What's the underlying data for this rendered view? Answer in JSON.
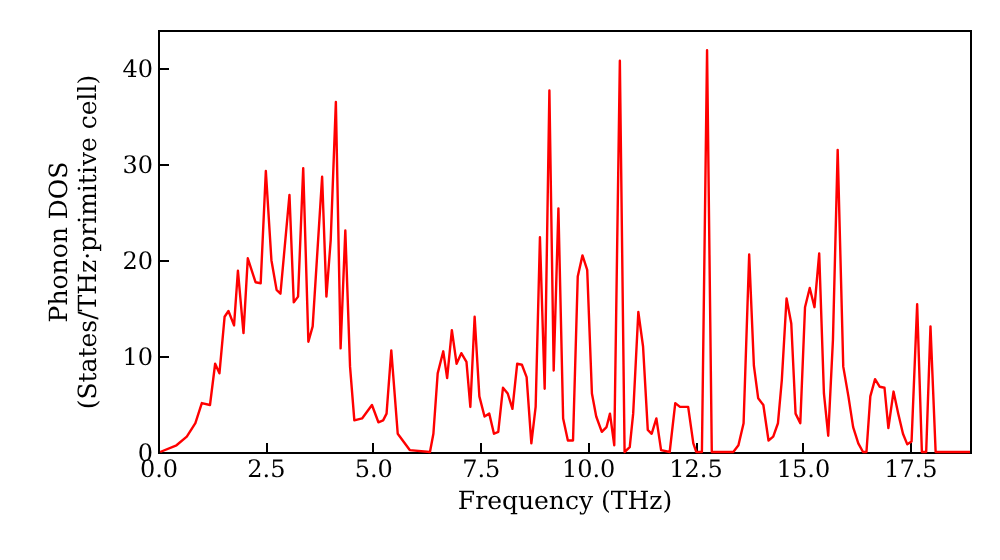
{
  "chart_data": {
    "type": "line",
    "xlabel": "Frequency (THz)",
    "ylabel": "Phonon DOS\n(States/THz·primitive cell)",
    "xlim": [
      0,
      18.9
    ],
    "ylim": [
      0,
      44
    ],
    "xticks": [
      {
        "value": 0,
        "label": "0.0"
      },
      {
        "value": 2.5,
        "label": "2.5"
      },
      {
        "value": 5,
        "label": "5.0"
      },
      {
        "value": 7.5,
        "label": "7.5"
      },
      {
        "value": 10,
        "label": "10.0"
      },
      {
        "value": 12.5,
        "label": "12.5"
      },
      {
        "value": 15,
        "label": "15.0"
      },
      {
        "value": 17.5,
        "label": "17.5"
      }
    ],
    "yticks": [
      0,
      10,
      20,
      30,
      40
    ],
    "grid": false,
    "marker": "none",
    "line_style": "solid",
    "series": [
      {
        "color": "#ff0000",
        "x": [
          0.05,
          0.43,
          0.67,
          0.87,
          1.02,
          1.21,
          1.33,
          1.43,
          1.55,
          1.64,
          1.77,
          1.86,
          1.99,
          2.09,
          2.27,
          2.39,
          2.51,
          2.64,
          2.76,
          2.85,
          3.06,
          3.16,
          3.26,
          3.38,
          3.5,
          3.6,
          3.82,
          3.92,
          4.02,
          4.14,
          4.25,
          4.36,
          4.47,
          4.57,
          4.75,
          4.98,
          5.13,
          5.24,
          5.32,
          5.43,
          5.58,
          5.86,
          6.33,
          6.41,
          6.51,
          6.64,
          6.73,
          6.84,
          6.95,
          7.06,
          7.18,
          7.27,
          7.37,
          7.48,
          7.6,
          7.71,
          7.82,
          7.92,
          8.03,
          8.14,
          8.25,
          8.36,
          8.47,
          8.58,
          8.69,
          8.79,
          8.89,
          9.0,
          9.11,
          9.21,
          9.32,
          9.43,
          9.54,
          9.66,
          9.77,
          9.88,
          9.99,
          10.1,
          10.2,
          10.33,
          10.44,
          10.52,
          10.62,
          10.75,
          10.86,
          10.98,
          11.06,
          11.18,
          11.29,
          11.4,
          11.49,
          11.6,
          11.71,
          11.91,
          12.04,
          12.15,
          12.34,
          12.46,
          12.53,
          12.66,
          12.78,
          12.89,
          13.39,
          13.51,
          13.63,
          13.76,
          13.87,
          13.97,
          14.09,
          14.21,
          14.32,
          14.43,
          14.52,
          14.63,
          14.74,
          14.84,
          14.95,
          15.06,
          15.17,
          15.28,
          15.39,
          15.5,
          15.6,
          15.71,
          15.82,
          15.95,
          16.07,
          16.18,
          16.3,
          16.41,
          16.49,
          16.58,
          16.69,
          16.8,
          16.91,
          17.0,
          17.12,
          17.23,
          17.34,
          17.44,
          17.54,
          17.67,
          17.78,
          17.88,
          17.98,
          18.1,
          18.9
        ],
        "values": [
          0,
          0.7,
          1.6,
          3.0,
          5.1,
          4.9,
          9.2,
          8.2,
          14.1,
          14.7,
          13.2,
          18.9,
          12.4,
          20.2,
          17.7,
          17.6,
          29.3,
          20.0,
          16.9,
          16.5,
          26.8,
          15.6,
          16.2,
          29.6,
          11.5,
          13.1,
          28.7,
          16.2,
          22.1,
          36.5,
          10.8,
          23.1,
          8.9,
          3.3,
          3.5,
          4.9,
          3.1,
          3.3,
          4.0,
          10.6,
          1.9,
          0.2,
          0,
          1.9,
          8.2,
          10.5,
          7.7,
          12.7,
          9.2,
          10.3,
          9.4,
          4.7,
          14.1,
          5.8,
          3.7,
          4.0,
          1.9,
          2.1,
          6.7,
          6.1,
          4.5,
          9.2,
          9.1,
          7.8,
          0.9,
          4.7,
          22.4,
          6.6,
          37.7,
          8.5,
          25.4,
          3.5,
          1.2,
          1.2,
          18.3,
          20.5,
          19.0,
          6.1,
          3.7,
          2.1,
          2.6,
          4.0,
          0.7,
          40.8,
          0,
          0.5,
          4.0,
          14.6,
          11.0,
          2.3,
          1.9,
          3.5,
          0.2,
          0,
          5.1,
          4.7,
          4.7,
          0.9,
          0,
          0,
          41.9,
          0,
          0,
          0.7,
          3.0,
          20.6,
          9.0,
          5.6,
          4.9,
          1.2,
          1.6,
          3.0,
          7.5,
          16.0,
          13.4,
          4.0,
          3.0,
          15.1,
          17.1,
          15.1,
          20.7,
          6.1,
          1.7,
          11.7,
          31.5,
          8.9,
          5.8,
          2.6,
          0.9,
          0,
          0,
          5.8,
          7.6,
          6.8,
          6.7,
          2.5,
          6.3,
          4.0,
          1.9,
          0.8,
          1.1,
          15.4,
          0,
          0,
          13.1,
          0,
          0
        ]
      }
    ]
  }
}
